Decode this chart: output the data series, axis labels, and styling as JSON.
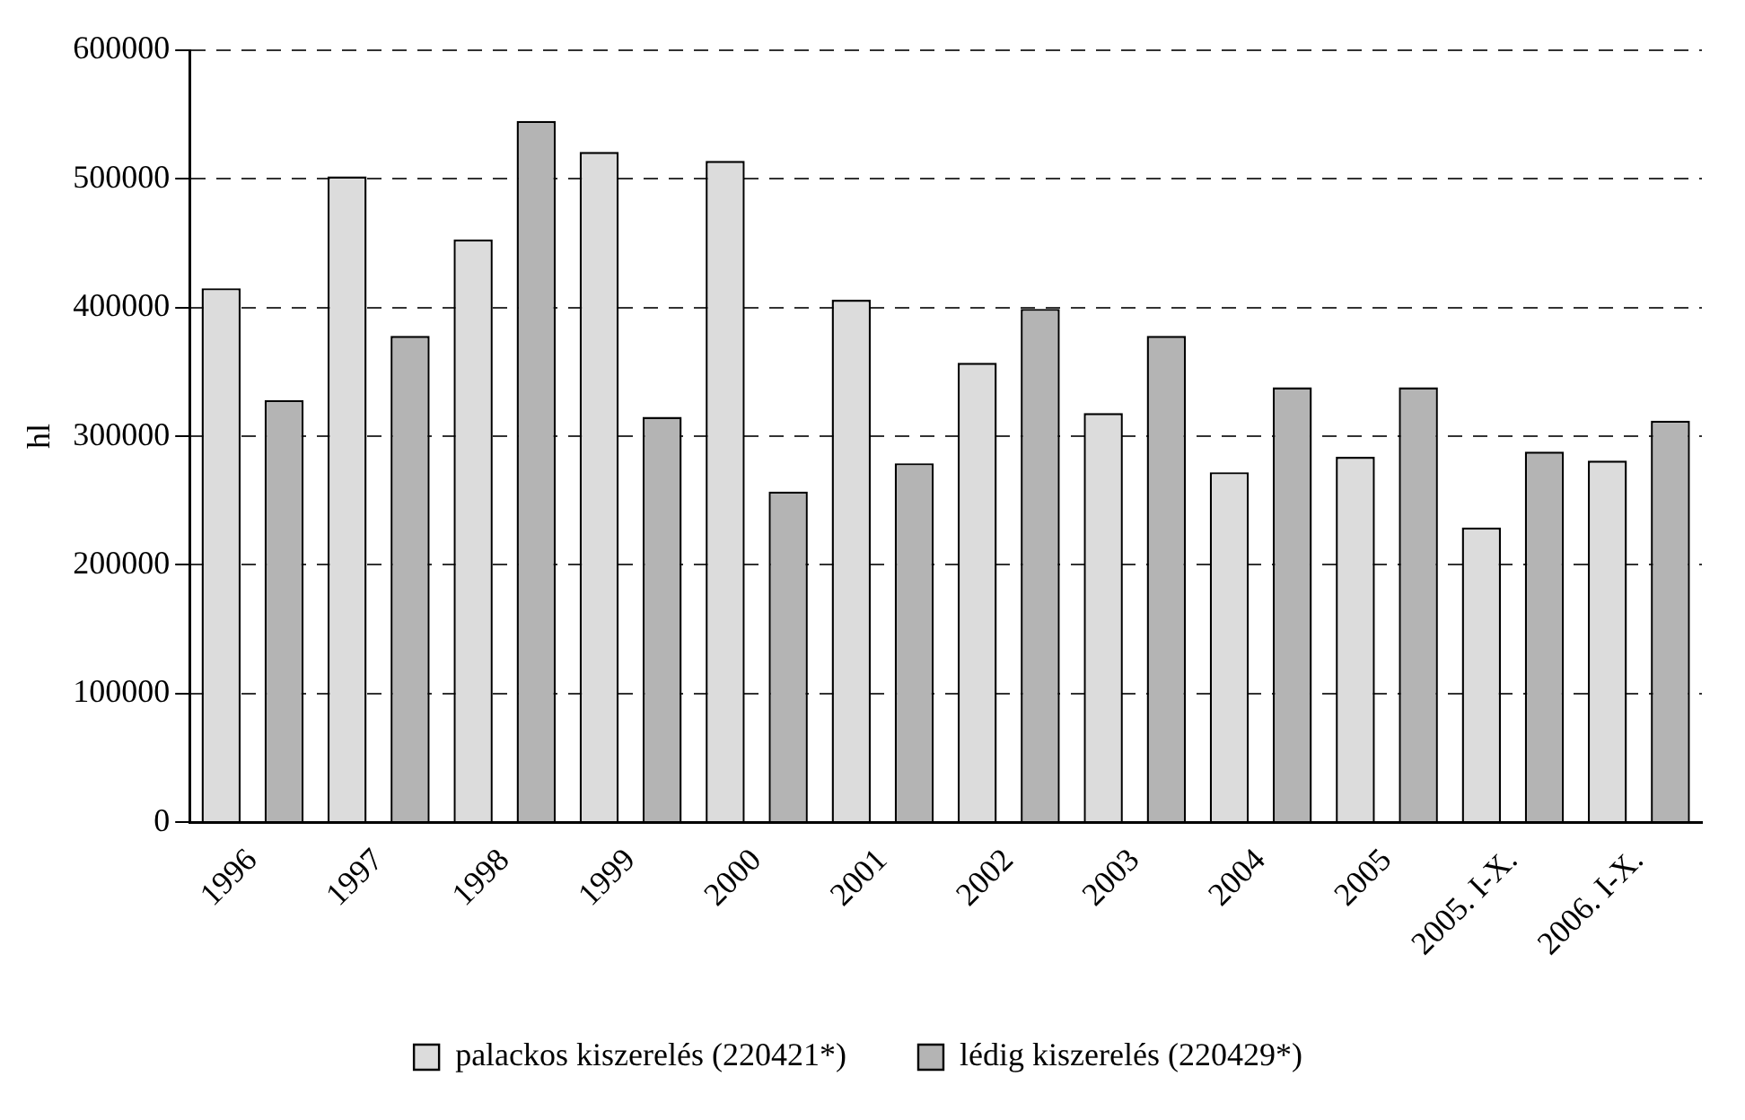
{
  "chart_data": {
    "type": "bar",
    "ylabel": "hl",
    "categories": [
      "1996",
      "1997",
      "1998",
      "1999",
      "2000",
      "2001",
      "2002",
      "2003",
      "2004",
      "2005",
      "2005. I-X.",
      "2006. I-X."
    ],
    "series": [
      {
        "name": "palackos kiszerelés (220421*)",
        "color": "#dcdcdc",
        "values": [
          415000,
          502000,
          453000,
          521000,
          514000,
          406000,
          357000,
          318000,
          272000,
          284000,
          229000,
          281000
        ]
      },
      {
        "name": "lédig kiszerelés (220429*)",
        "color": "#b4b4b4",
        "values": [
          328000,
          378000,
          545000,
          315000,
          257000,
          279000,
          399000,
          378000,
          338000,
          338000,
          288000,
          312000
        ]
      }
    ],
    "ylim": [
      0,
      600000
    ],
    "yticks": [
      0,
      100000,
      200000,
      300000,
      400000,
      500000,
      600000
    ],
    "grid": "y",
    "legend": "bottom"
  }
}
